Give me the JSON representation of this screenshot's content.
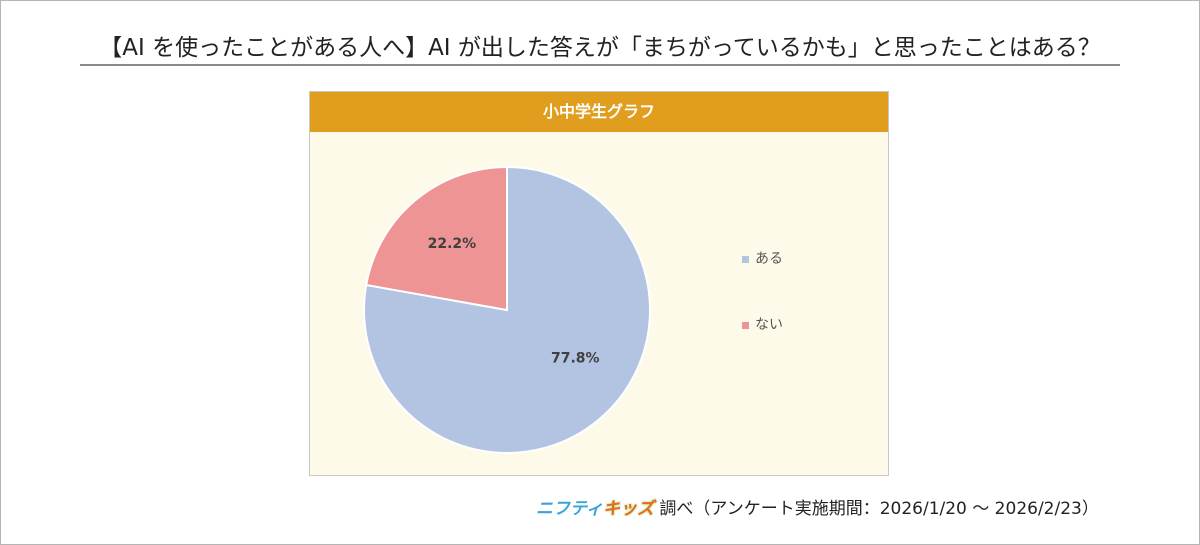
{
  "title": "【AI を使ったことがある人へ】AI が出した答えが「まちがっているかも」と思ったことはある？",
  "chart_data": {
    "type": "pie",
    "title": "小中学生グラフ",
    "categories": [
      "ある",
      "ない"
    ],
    "values": [
      77.8,
      22.2
    ],
    "labels": [
      "77.8%",
      "22.2%"
    ],
    "colors": [
      "#b3c3e2",
      "#ef9494"
    ],
    "start": "12 o'clock, clockwise",
    "legend_position": "right"
  },
  "footer": {
    "logo_part1": "ニフティ",
    "logo_part2": "キッズ",
    "text": "調べ（アンケート実施期間：2026/1/20 ～ 2026/2/23）"
  }
}
